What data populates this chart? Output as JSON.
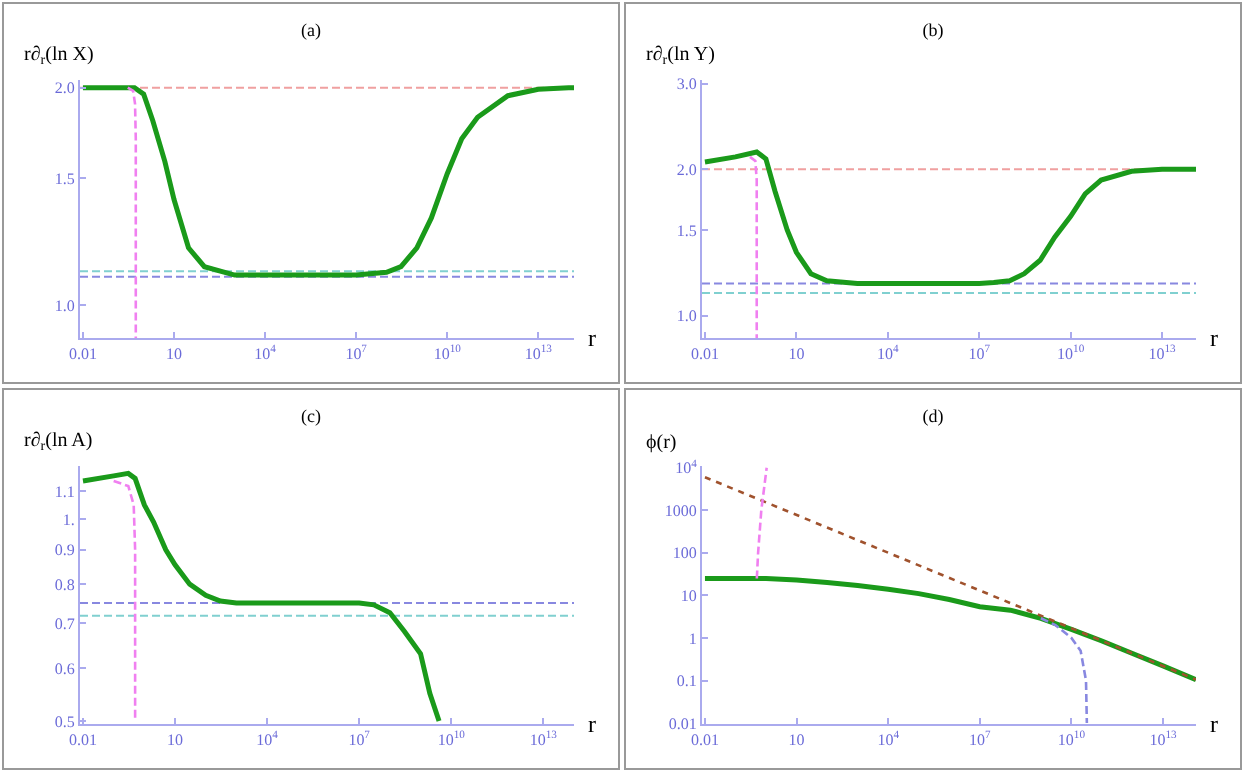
{
  "chart_data": [
    {
      "type": "line",
      "title": "(a)",
      "ylabel": "r∂$_{r}$(ln X)",
      "xlabel": "r",
      "log": "xy",
      "grid": false,
      "xlim": [
        0.008,
        150000000000000.0
      ],
      "xticks": [
        {
          "value": 0.01,
          "label": "0.01"
        },
        {
          "value": 10,
          "label": "10"
        },
        {
          "value": 10000.0,
          "label": "10$^{4}$"
        },
        {
          "value": 10000000.0,
          "label": "10$^{7}$"
        },
        {
          "value": 10000000000.0,
          "label": "10$^{10}$"
        },
        {
          "value": 10000000000000.0,
          "label": "10$^{13}$"
        }
      ],
      "ylim": [
        0.9,
        2.05
      ],
      "yticks": [
        {
          "value": 1,
          "label": "1.0"
        },
        1.5,
        {
          "value": 2,
          "label": "2.0"
        }
      ],
      "series": [
        {
          "color": "#1a9a1a",
          "line_style": "solid",
          "x": [
            0.01,
            0.1,
            0.5,
            1,
            2,
            5,
            10,
            30,
            100,
            1000,
            10000.0,
            100000.0,
            1000000.0,
            10000000.0,
            100000000.0,
            300000000.0,
            1000000000.0,
            3000000000.0,
            10000000000.0,
            30000000000.0,
            100000000000.0,
            1000000000000.0,
            10000000000000.0,
            100000000000000.0,
            150000000000000.0
          ],
          "values": [
            2.0,
            2.0,
            2.0,
            1.96,
            1.8,
            1.58,
            1.4,
            1.2,
            1.13,
            1.1,
            1.1,
            1.1,
            1.1,
            1.1,
            1.11,
            1.13,
            1.2,
            1.32,
            1.52,
            1.7,
            1.82,
            1.95,
            1.99,
            2.0,
            2.0
          ]
        },
        {
          "color": "#f080f0",
          "line_style": "dashed",
          "x": [
            0.3,
            0.45,
            0.52,
            0.55,
            0.55
          ],
          "values": [
            2.0,
            1.98,
            1.9,
            1.7,
            0.9
          ]
        }
      ],
      "ref_lines": [
        {
          "axis": "y",
          "value": 2.0,
          "color": "#f0a0a0",
          "line_style": "dashed"
        },
        {
          "axis": "y",
          "value": 1.114,
          "color": "#80d0d0",
          "line_style": "dashed"
        },
        {
          "axis": "y",
          "value": 1.094,
          "color": "#8888e0",
          "line_style": "dashed"
        }
      ]
    },
    {
      "type": "line",
      "title": "(b)",
      "ylabel": "r∂$_{r}$(ln Y)",
      "xlabel": "r",
      "log": "xy",
      "grid": false,
      "xlim": [
        0.008,
        130000000000000.0
      ],
      "xticks": [
        {
          "value": 0.01,
          "label": "0.01"
        },
        {
          "value": 10,
          "label": "10"
        },
        {
          "value": 10000.0,
          "label": "10$^{4}$"
        },
        {
          "value": 10000000.0,
          "label": "10$^{7}$"
        },
        {
          "value": 10000000000.0,
          "label": "10$^{10}$"
        },
        {
          "value": 10000000000000.0,
          "label": "10$^{13}$"
        }
      ],
      "ylim": [
        0.9,
        3.05
      ],
      "yticks": [
        {
          "value": 1,
          "label": "1.0"
        },
        1.5,
        {
          "value": 2,
          "label": "2.0"
        },
        {
          "value": 3,
          "label": "3.0"
        }
      ],
      "series": [
        {
          "color": "#1a9a1a",
          "line_style": "solid",
          "x": [
            0.01,
            0.1,
            0.5,
            1,
            2,
            5,
            10,
            30,
            100,
            1000,
            10000.0,
            100000.0,
            1000000.0,
            10000000.0,
            30000000.0,
            100000000.0,
            300000000.0,
            1000000000.0,
            3000000000.0,
            10000000000.0,
            30000000000.0,
            100000000000.0,
            1000000000000.0,
            10000000000000.0,
            130000000000000.0
          ],
          "values": [
            2.07,
            2.12,
            2.17,
            2.1,
            1.8,
            1.5,
            1.35,
            1.22,
            1.18,
            1.165,
            1.165,
            1.165,
            1.165,
            1.165,
            1.17,
            1.18,
            1.22,
            1.3,
            1.45,
            1.6,
            1.78,
            1.9,
            1.98,
            2.0,
            2.0
          ]
        },
        {
          "color": "#f080f0",
          "line_style": "dashed",
          "x": [
            0.3,
            0.45,
            0.5,
            0.5
          ],
          "values": [
            2.12,
            2.08,
            1.9,
            0.9
          ]
        }
      ],
      "ref_lines": [
        {
          "axis": "y",
          "value": 2.0,
          "color": "#f0a0a0",
          "line_style": "dashed"
        },
        {
          "axis": "y",
          "value": 1.165,
          "color": "#8888e0",
          "line_style": "dashed"
        },
        {
          "axis": "y",
          "value": 1.114,
          "color": "#80d0d0",
          "line_style": "dashed"
        }
      ]
    },
    {
      "type": "line",
      "title": "(c)",
      "ylabel": "r∂$_{r}$(ln A)",
      "xlabel": "r",
      "log": "xy",
      "grid": false,
      "xlim": [
        0.008,
        100000000000000.0
      ],
      "xticks": [
        {
          "value": 0.01,
          "label": "0.01"
        },
        {
          "value": 10,
          "label": "10"
        },
        {
          "value": 10000.0,
          "label": "10$^{4}$"
        },
        {
          "value": 10000000.0,
          "label": "10$^{7}$"
        },
        {
          "value": 10000000000.0,
          "label": "10$^{10}$"
        },
        {
          "value": 10000000000000.0,
          "label": "10$^{13}$"
        }
      ],
      "ylim": [
        0.495,
        1.2
      ],
      "yticks": [
        0.5,
        0.6,
        0.7,
        0.8,
        0.9,
        {
          "value": 1,
          "label": "1."
        },
        1.1
      ],
      "series": [
        {
          "color": "#1a9a1a",
          "line_style": "solid",
          "x": [
            0.01,
            0.1,
            0.3,
            0.5,
            1,
            2,
            5,
            10,
            30,
            100,
            300,
            1000,
            10000.0,
            100000.0,
            1000000.0,
            10000000.0,
            30000000.0,
            100000000.0,
            300000000.0,
            1000000000.0,
            2000000000.0,
            4000000000.0
          ],
          "values": [
            1.14,
            1.16,
            1.17,
            1.15,
            1.05,
            0.99,
            0.9,
            0.855,
            0.8,
            0.77,
            0.755,
            0.75,
            0.75,
            0.75,
            0.75,
            0.75,
            0.745,
            0.725,
            0.68,
            0.63,
            0.55,
            0.5
          ]
        },
        {
          "color": "#f080f0",
          "line_style": "dashed",
          "x": [
            0.1,
            0.3,
            0.45,
            0.5,
            0.5
          ],
          "values": [
            1.14,
            1.12,
            1.05,
            0.9,
            0.5
          ]
        }
      ],
      "ref_lines": [
        {
          "axis": "y",
          "value": 0.75,
          "color": "#8888e0",
          "line_style": "dashed"
        },
        {
          "axis": "y",
          "value": 0.718,
          "color": "#80d0d0",
          "line_style": "dashed"
        }
      ]
    },
    {
      "type": "line",
      "title": "(d)",
      "ylabel": "ϕ(r)",
      "xlabel": "r",
      "log": "xy",
      "grid": false,
      "xlim": [
        0.008,
        120000000000000.0
      ],
      "xticks": [
        {
          "value": 0.01,
          "label": "0.01"
        },
        {
          "value": 10,
          "label": "10"
        },
        {
          "value": 10000.0,
          "label": "10$^{4}$"
        },
        {
          "value": 10000000.0,
          "label": "10$^{7}$"
        },
        {
          "value": 10000000000.0,
          "label": "10$^{10}$"
        },
        {
          "value": 10000000000000.0,
          "label": "10$^{13}$"
        }
      ],
      "ylim": [
        0.0095,
        11000
      ],
      "yticks": [
        0.01,
        0.1,
        1,
        10,
        100,
        1000,
        {
          "value": 10000,
          "label": "10$^{4}$"
        }
      ],
      "series": [
        {
          "color": "#1a9a1a",
          "line_style": "solid",
          "x": [
            0.01,
            1,
            10,
            100,
            1000,
            10000.0,
            100000.0,
            1000000.0,
            10000000.0,
            100000000.0,
            1000000000.0,
            10000000000.0,
            100000000000.0,
            1000000000000.0,
            10000000000000.0,
            120000000000000.0
          ],
          "values": [
            25,
            25,
            23,
            20,
            17,
            14,
            11,
            8,
            5.4,
            4.5,
            2.9,
            1.6,
            0.85,
            0.43,
            0.22,
            0.105
          ]
        },
        {
          "color": "#a0522d",
          "line_style": "dotted",
          "x": [
            0.01,
            120000000000000.0
          ],
          "values": [
            6000,
            0.105
          ]
        },
        {
          "color": "#8888e0",
          "line_style": "dashed",
          "x": [
            1000000000.0,
            3000000000.0,
            10000000000.0,
            20000000000.0,
            30000000000.0,
            32000000000.0
          ],
          "values": [
            2.9,
            2.0,
            1.0,
            0.5,
            0.1,
            0.01
          ]
        },
        {
          "color": "#f080f0",
          "line_style": "dashed",
          "x": [
            0.5,
            0.55,
            0.7,
            1.05
          ],
          "values": [
            25,
            100,
            1000,
            10000
          ]
        }
      ]
    }
  ]
}
